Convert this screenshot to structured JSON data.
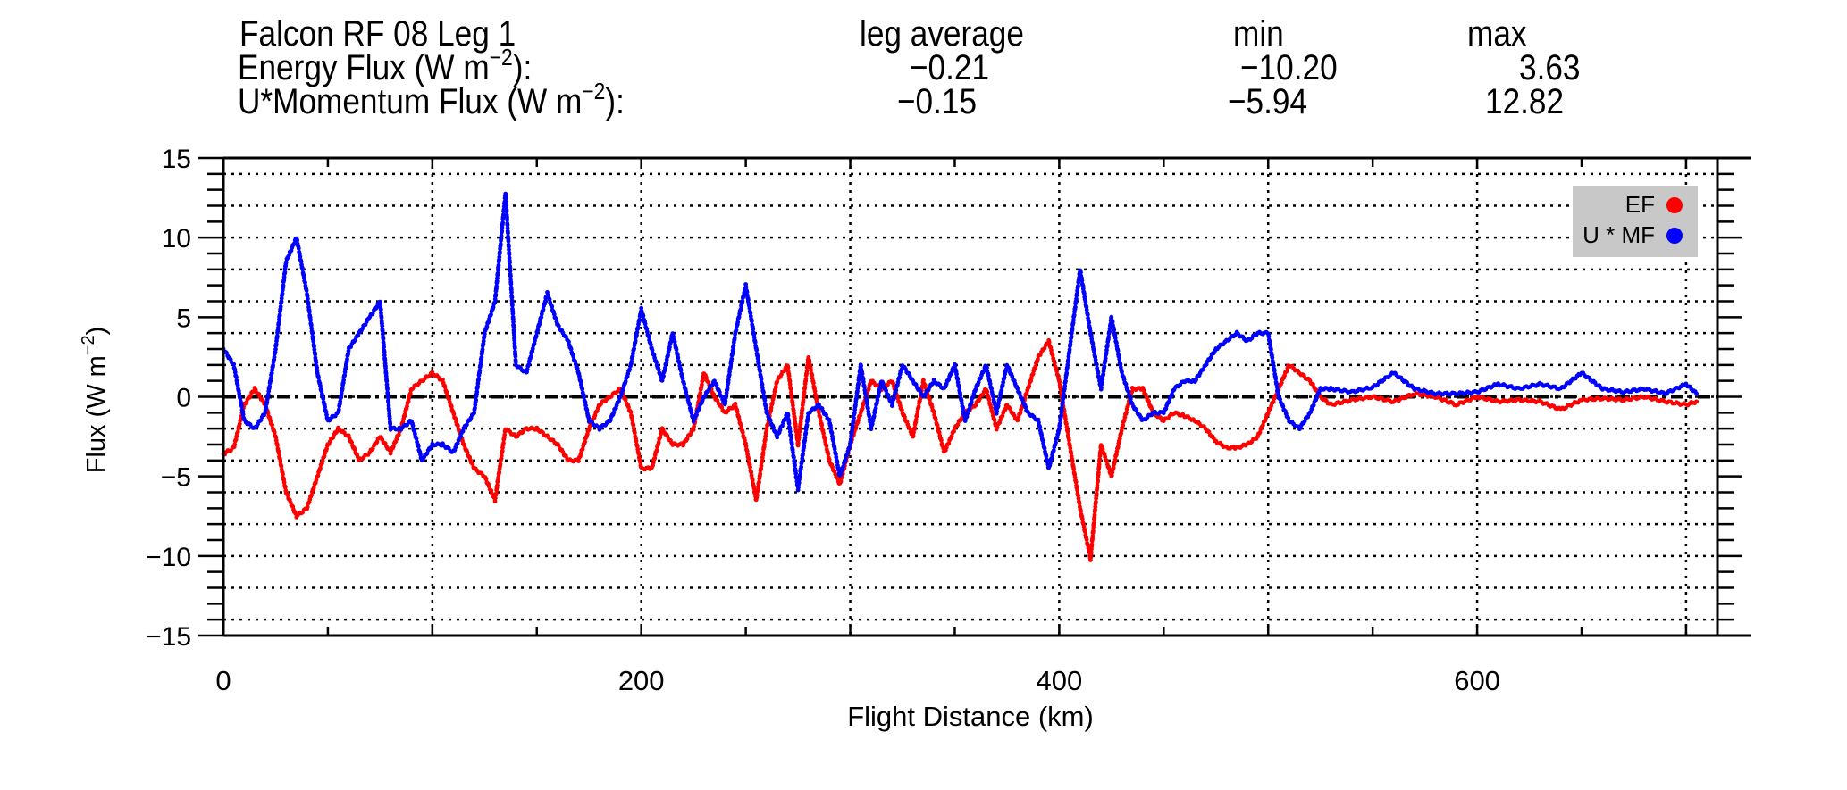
{
  "header": {
    "title": "Falcon RF 08 Leg 1",
    "col_avg": "leg average",
    "col_min": "min",
    "col_max": "max",
    "energy": {
      "label_pre": "Energy Flux (W m",
      "label_exp": "−2",
      "label_post": "):",
      "avg": "−0.21",
      "min": "−10.20",
      "max": "3.63"
    },
    "momentum": {
      "label_pre": "U*Momentum Flux (W m",
      "label_exp": "−2",
      "label_post": "):",
      "avg": "−0.15",
      "min": "−5.94",
      "max": "12.82"
    }
  },
  "chart_data": {
    "type": "scatter",
    "xlabel": "Flight Distance (km)",
    "ylabel_pre": "Flux (W m",
    "ylabel_exp": "−2",
    "ylabel_post": ")",
    "xlim": [
      0,
      715
    ],
    "ylim": [
      -15,
      15
    ],
    "xticks": [
      0,
      200,
      400,
      600
    ],
    "yticks": [
      15,
      10,
      5,
      0,
      -5,
      -10,
      -15
    ],
    "ytick_labels": [
      "15",
      "10",
      "5",
      "0",
      "−5",
      "−10",
      "−15"
    ],
    "grid": "dotted",
    "zero_line": "dash-dot",
    "legend_position": "top-right",
    "series": [
      {
        "name": "EF",
        "color": "#ff0000",
        "x": [
          0,
          5,
          10,
          15,
          20,
          25,
          30,
          35,
          40,
          45,
          50,
          55,
          60,
          65,
          70,
          75,
          80,
          85,
          90,
          95,
          100,
          105,
          110,
          115,
          120,
          125,
          130,
          135,
          140,
          145,
          150,
          155,
          160,
          165,
          170,
          175,
          180,
          185,
          190,
          195,
          200,
          205,
          210,
          215,
          220,
          225,
          230,
          235,
          240,
          245,
          250,
          255,
          260,
          265,
          270,
          275,
          280,
          285,
          290,
          295,
          300,
          305,
          310,
          315,
          320,
          325,
          330,
          335,
          340,
          345,
          350,
          355,
          360,
          365,
          370,
          375,
          380,
          385,
          390,
          395,
          400,
          405,
          410,
          415,
          420,
          425,
          430,
          435,
          440,
          445,
          450,
          455,
          460,
          465,
          470,
          475,
          480,
          485,
          490,
          495,
          500,
          505,
          510,
          515,
          520,
          525,
          530,
          540,
          550,
          560,
          570,
          580,
          590,
          600,
          610,
          620,
          630,
          640,
          650,
          660,
          670,
          680,
          690,
          700,
          705
        ],
        "y": [
          -3.6,
          -3.2,
          -0.5,
          0.5,
          -0.5,
          -2.5,
          -6,
          -7.5,
          -7,
          -5,
          -3,
          -2,
          -2.5,
          -4,
          -3.5,
          -2.5,
          -3.5,
          -2,
          0.5,
          1,
          1.5,
          1,
          -1,
          -3,
          -4.5,
          -5,
          -6.5,
          -2,
          -2.5,
          -2,
          -2,
          -2.5,
          -3,
          -4,
          -4,
          -2,
          -0.5,
          0,
          0.5,
          -1,
          -4.5,
          -4.5,
          -2,
          -3,
          -3,
          -2,
          1.5,
          0,
          -1,
          -0.5,
          -3,
          -6.5,
          -2,
          1,
          2,
          -3,
          2.5,
          -1,
          -4,
          -5.5,
          -3,
          -1,
          1,
          0.5,
          1,
          -1,
          -2.5,
          1,
          -1,
          -3.5,
          -2,
          -1,
          -0.5,
          0.5,
          -2,
          -0.5,
          -1.5,
          0.5,
          2.5,
          3.5,
          1,
          -3,
          -7,
          -10.2,
          -3,
          -5,
          -2,
          0.5,
          0.5,
          -1,
          -1.5,
          -1,
          -1.2,
          -1.5,
          -2,
          -2.8,
          -3.2,
          -3.2,
          -3,
          -2.5,
          -1,
          0.5,
          2,
          1.5,
          1,
          0,
          -0.5,
          -0.2,
          0,
          -0.3,
          0.2,
          0,
          -0.5,
          0,
          -0.3,
          -0.2,
          -0.3,
          -0.8,
          -0.2,
          -0.1,
          -0.2,
          0,
          -0.3,
          -0.5,
          -0.3
        ]
      },
      {
        "name": "U * MF",
        "color": "#0000ff",
        "x": [
          0,
          5,
          10,
          15,
          20,
          25,
          30,
          35,
          40,
          45,
          50,
          55,
          60,
          65,
          70,
          75,
          80,
          85,
          90,
          95,
          100,
          105,
          110,
          115,
          120,
          125,
          130,
          135,
          140,
          145,
          150,
          155,
          160,
          165,
          170,
          175,
          180,
          185,
          190,
          195,
          200,
          205,
          210,
          215,
          220,
          225,
          230,
          235,
          240,
          245,
          250,
          255,
          260,
          265,
          270,
          275,
          280,
          285,
          290,
          295,
          300,
          305,
          310,
          315,
          320,
          325,
          330,
          335,
          340,
          345,
          350,
          355,
          360,
          365,
          370,
          375,
          380,
          385,
          390,
          395,
          400,
          405,
          410,
          415,
          420,
          425,
          430,
          435,
          440,
          445,
          450,
          455,
          460,
          465,
          470,
          475,
          480,
          485,
          490,
          495,
          500,
          505,
          510,
          515,
          520,
          525,
          530,
          540,
          550,
          560,
          570,
          580,
          590,
          600,
          610,
          620,
          630,
          640,
          650,
          660,
          670,
          680,
          690,
          700,
          705
        ],
        "y": [
          3,
          2,
          -1.5,
          -2,
          -1,
          3,
          8.5,
          10,
          6.5,
          1.5,
          -1.5,
          -1,
          3,
          4,
          5,
          6,
          -2,
          -2,
          -1.5,
          -4,
          -3,
          -3,
          -3.5,
          -2,
          -1,
          4,
          6,
          12.8,
          2,
          1.5,
          4,
          6.5,
          4.5,
          3.5,
          1.5,
          -1.5,
          -2,
          -1.5,
          0,
          2,
          5.5,
          3,
          1,
          4,
          1,
          -1.5,
          0,
          1,
          -0.5,
          4,
          7,
          3,
          -1,
          -2.5,
          -1,
          -5.8,
          -1,
          -0.5,
          -1.5,
          -5,
          -3,
          2,
          -2,
          1,
          -0.5,
          2,
          1,
          0,
          1,
          0.5,
          2,
          -1.5,
          0.5,
          2,
          -1,
          2,
          0.5,
          -1,
          -1.5,
          -4.5,
          -2,
          3,
          8,
          4,
          0.5,
          5,
          1.5,
          -0.5,
          -1.5,
          -1,
          -1,
          0.5,
          1,
          1,
          2,
          3,
          3.5,
          4,
          3.5,
          4,
          4,
          0,
          -1.5,
          -2,
          -1,
          0.5,
          0.5,
          0.3,
          0.6,
          1.5,
          0.5,
          0.2,
          0.2,
          0.3,
          0.8,
          0.5,
          0.8,
          0.5,
          1.5,
          0.5,
          0.3,
          0.5,
          0.2,
          0.8,
          0.2
        ]
      }
    ]
  }
}
